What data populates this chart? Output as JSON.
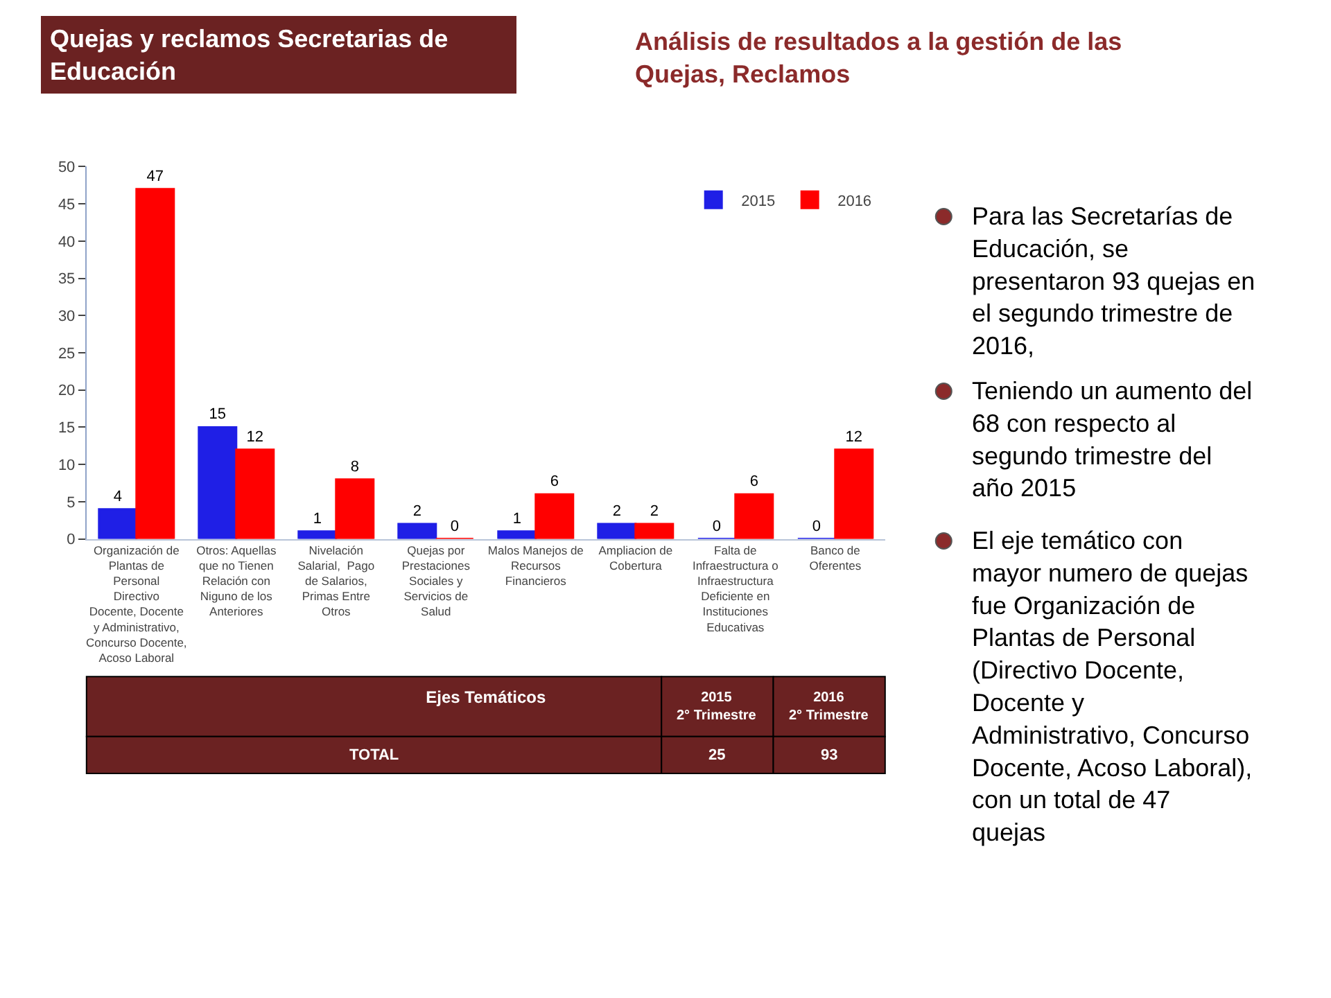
{
  "chart_data": {
    "type": "bar",
    "title": "Quejas y reclamos Secretarias de Educación",
    "subtitle": "Análisis de resultados a la gestión de las Quejas, Reclamos",
    "xlabel": "Ejes Temáticos",
    "categories": [
      "Organización de Plantas de Personal Directivo Docente, Docente y Administrativo, Concurso Docente, Acoso Laboral",
      "Otros: Aquellas que no Tienen Relación con Niguno de los Anteriores",
      "Nivelación Salarial,  Pago de Salarios, Primas Entre Otros",
      "Quejas por Prestaciones Sociales y Servicios de Salud",
      "Malos Manejos de Recursos Financieros",
      "Ampliacion de Cobertura",
      "Falta de Infraestructura o Infraestructura Deficiente en Instituciones Educativas",
      "Banco de  Oferentes"
    ],
    "series": [
      {
        "name": "2015",
        "color": "#1f1fe6",
        "values": [
          4,
          15,
          1,
          2,
          1,
          2,
          0,
          0
        ]
      },
      {
        "name": "2016",
        "color": "#ff0000",
        "values": [
          47,
          12,
          8,
          0,
          6,
          2,
          6,
          12
        ]
      }
    ],
    "ylim": [
      0,
      50
    ],
    "yticks": [
      0,
      5,
      10,
      15,
      20,
      25,
      30,
      35,
      40,
      45,
      50
    ],
    "grid": false,
    "legend": "top right",
    "data_labels": true,
    "tick_labels": "y",
    "annotations": [
      "Para las Secretarías de Educación, se presentaron 93 quejas en el segundo trimestre de 2016,",
      "Teniendo un aumento del 68 con respecto al segundo trimestre del año 2015",
      "El eje temático con mayor numero de quejas fue Organización de Plantas de Personal (Directivo Docente, Docente y Administrativo, Concurso Docente, Acoso Laboral), con un total de 47 quejas",
      "2° Trimestre",
      "TOTAL",
      "25",
      "93"
    ]
  }
}
